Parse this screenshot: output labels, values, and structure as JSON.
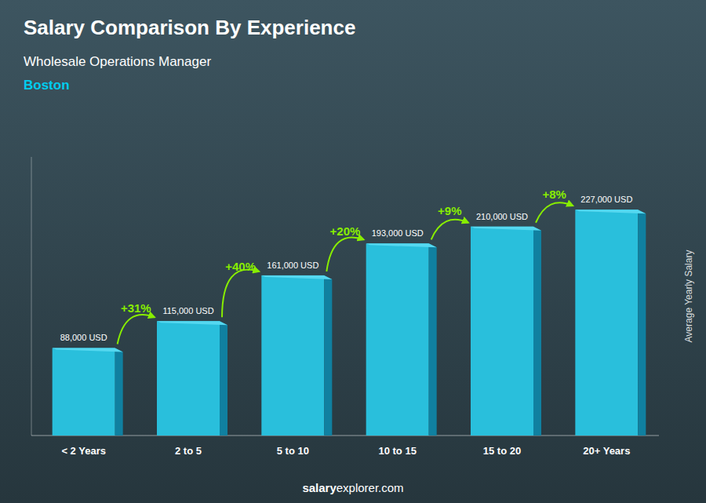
{
  "chart_data": {
    "type": "bar",
    "title": "Salary Comparison By Experience",
    "subtitle": [
      "Wholesale Operations Manager",
      "Boston"
    ],
    "ylabel": "Average Yearly Salary",
    "categories": [
      "< 2 Years",
      "2 to 5",
      "5 to 10",
      "10 to 15",
      "15 to 20",
      "20+ Years"
    ],
    "values": [
      88000,
      115000,
      161000,
      193000,
      210000,
      227000
    ],
    "value_labels": [
      "88,000 USD",
      "115,000 USD",
      "161,000 USD",
      "193,000 USD",
      "210,000 USD",
      "227,000 USD"
    ],
    "data_labels": true,
    "annotations": [
      "+31%",
      "+40%",
      "+20%",
      "+9%",
      "+8%"
    ],
    "footer": [
      "salary",
      "explorer.com"
    ],
    "color": "#29BFDC",
    "ylim": [
      0,
      280000
    ],
    "tick_labels": "x",
    "grid": false
  }
}
